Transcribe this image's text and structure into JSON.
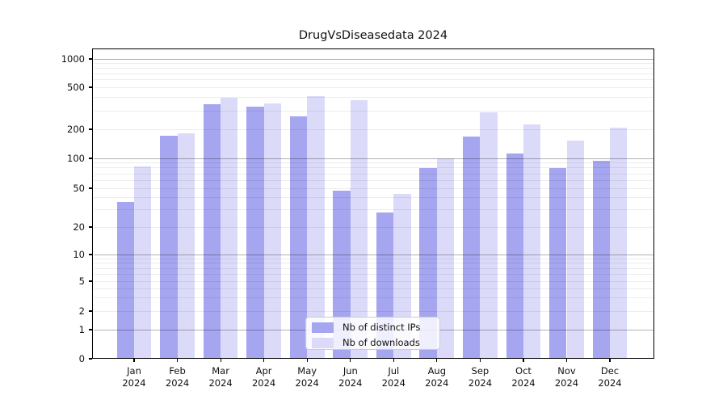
{
  "figure_title": "DrugVsDiseasedata 2024",
  "chart_data": {
    "type": "bar",
    "title": "DrugVsDiseasedata 2024",
    "categories": [
      "Jan",
      "Feb",
      "Mar",
      "Apr",
      "May",
      "Jun",
      "Jul",
      "Aug",
      "Sep",
      "Oct",
      "Nov",
      "Dec"
    ],
    "year": "2024",
    "series": [
      {
        "name": "Nb of distinct IPs",
        "color": "#a5a5f0",
        "values": [
          36,
          170,
          345,
          327,
          265,
          47,
          28,
          80,
          168,
          112,
          80,
          95
        ]
      },
      {
        "name": "Nb of downloads",
        "color": "#dbdbf9",
        "values": [
          83,
          182,
          398,
          351,
          412,
          377,
          44,
          101,
          290,
          222,
          153,
          207
        ]
      }
    ],
    "yscale": "log-like (symlog)",
    "yticks": [
      0,
      1,
      2,
      5,
      10,
      20,
      50,
      100,
      200,
      500,
      1000
    ],
    "ylim": [
      0,
      1300
    ],
    "xlabel": "",
    "ylabel": "",
    "grid": true,
    "legend_position": "lower center"
  }
}
